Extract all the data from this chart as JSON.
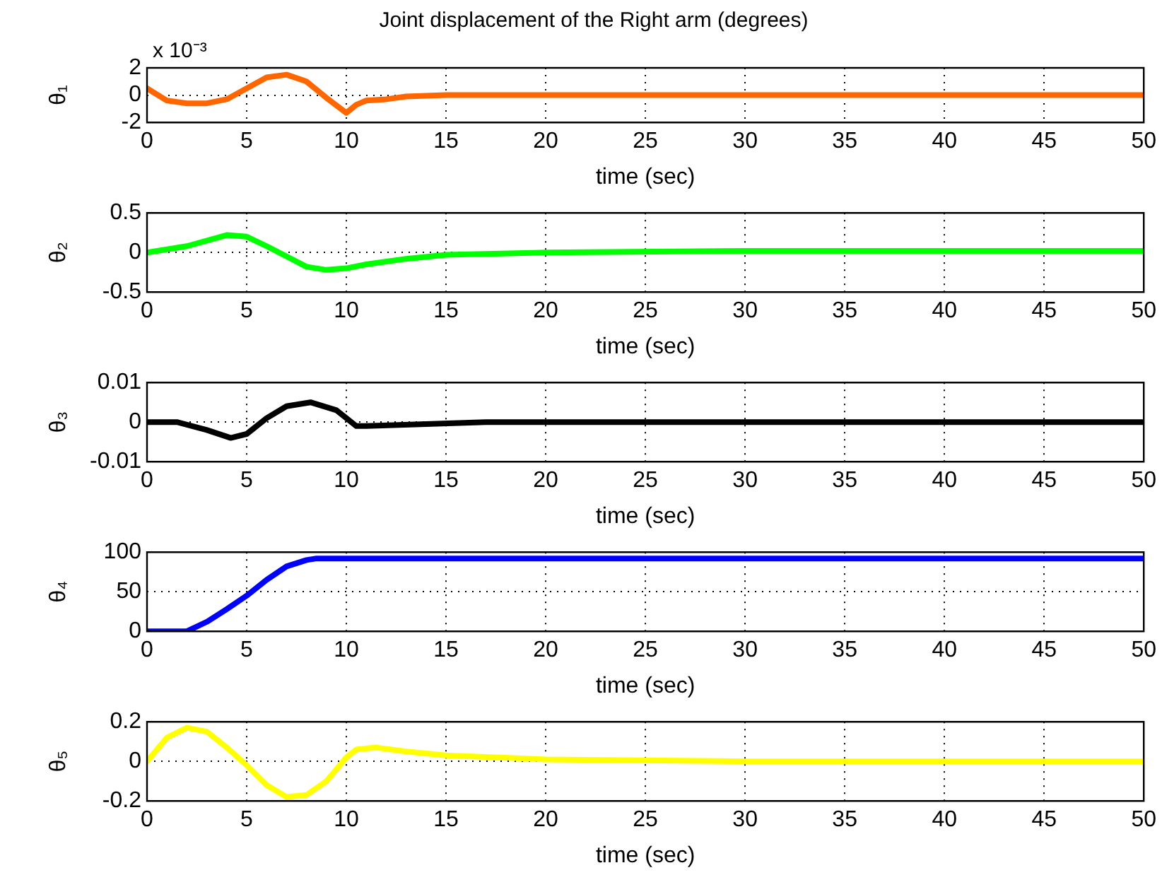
{
  "chart_data": [
    {
      "type": "line",
      "title": "Joint displacement of the Right arm (degrees)",
      "annotations": [
        "x 10⁻³"
      ],
      "xlabel": "time (sec)",
      "ylabel": "θ₁",
      "x": [
        0,
        1,
        2,
        3,
        4,
        5,
        6,
        7,
        8,
        9,
        10,
        10.5,
        11,
        12,
        13,
        15,
        20,
        30,
        40,
        50
      ],
      "series": [
        {
          "color": "#ff6600",
          "values": [
            0.5,
            -0.4,
            -0.6,
            -0.6,
            -0.3,
            0.5,
            1.3,
            1.5,
            1.0,
            -0.2,
            -1.3,
            -0.7,
            -0.4,
            -0.3,
            -0.1,
            0,
            0,
            0,
            0,
            0
          ]
        }
      ],
      "xlim": [
        0,
        50
      ],
      "xticks": [
        0,
        5,
        10,
        15,
        20,
        25,
        30,
        35,
        40,
        45,
        50
      ],
      "ylim": [
        -2,
        2
      ],
      "yticks": [
        -2,
        0,
        2
      ],
      "grid": true
    },
    {
      "type": "line",
      "xlabel": "time (sec)",
      "ylabel": "θ₂",
      "x": [
        0,
        2,
        4,
        5,
        6,
        7,
        8,
        9,
        10,
        11,
        13,
        15,
        20,
        30,
        40,
        50
      ],
      "series": [
        {
          "color": "#00ff00",
          "values": [
            0,
            0.08,
            0.22,
            0.2,
            0.08,
            -0.05,
            -0.18,
            -0.22,
            -0.2,
            -0.15,
            -0.08,
            -0.03,
            0,
            0.02,
            0.02,
            0.02
          ]
        }
      ],
      "xlim": [
        0,
        50
      ],
      "xticks": [
        0,
        5,
        10,
        15,
        20,
        25,
        30,
        35,
        40,
        45,
        50
      ],
      "ylim": [
        -0.5,
        0.5
      ],
      "yticks": [
        -0.5,
        0,
        0.5
      ],
      "grid": true
    },
    {
      "type": "line",
      "xlabel": "time (sec)",
      "ylabel": "θ₃",
      "x": [
        0,
        1.5,
        3,
        4.2,
        5,
        6,
        7,
        8.2,
        9.5,
        10.5,
        11,
        17,
        30,
        50
      ],
      "series": [
        {
          "color": "#000000",
          "values": [
            0,
            0,
            -0.002,
            -0.004,
            -0.003,
            0.001,
            0.004,
            0.005,
            0.003,
            -0.001,
            -0.001,
            0,
            0,
            0
          ]
        }
      ],
      "xlim": [
        0,
        50
      ],
      "xticks": [
        0,
        5,
        10,
        15,
        20,
        25,
        30,
        35,
        40,
        45,
        50
      ],
      "ylim": [
        -0.01,
        0.01
      ],
      "yticks": [
        -0.01,
        0,
        0.01
      ],
      "grid": true
    },
    {
      "type": "line",
      "xlabel": "time (sec)",
      "ylabel": "θ₄",
      "x": [
        0,
        2,
        3,
        4,
        5,
        6,
        7,
        8,
        8.5,
        20,
        50
      ],
      "series": [
        {
          "color": "#0000ff",
          "values": [
            0,
            0,
            12,
            28,
            45,
            65,
            82,
            90,
            92,
            92,
            92
          ]
        }
      ],
      "xlim": [
        0,
        50
      ],
      "xticks": [
        0,
        5,
        10,
        15,
        20,
        25,
        30,
        35,
        40,
        45,
        50
      ],
      "ylim": [
        0,
        100
      ],
      "yticks": [
        0,
        50,
        100
      ],
      "grid": true
    },
    {
      "type": "line",
      "xlabel": "time (sec)",
      "ylabel": "θ₅",
      "x": [
        0,
        1,
        2,
        3,
        4,
        5,
        6,
        7,
        8,
        9,
        10,
        10.5,
        11.5,
        13,
        15,
        20,
        30,
        50
      ],
      "series": [
        {
          "color": "#ffff00",
          "values": [
            0,
            0.12,
            0.17,
            0.15,
            0.07,
            -0.02,
            -0.12,
            -0.18,
            -0.17,
            -0.1,
            0.02,
            0.06,
            0.07,
            0.05,
            0.03,
            0.01,
            0,
            0
          ]
        }
      ],
      "xlim": [
        0,
        50
      ],
      "xticks": [
        0,
        5,
        10,
        15,
        20,
        25,
        30,
        35,
        40,
        45,
        50
      ],
      "ylim": [
        -0.2,
        0.2
      ],
      "yticks": [
        -0.2,
        0,
        0.2
      ],
      "grid": true
    }
  ]
}
